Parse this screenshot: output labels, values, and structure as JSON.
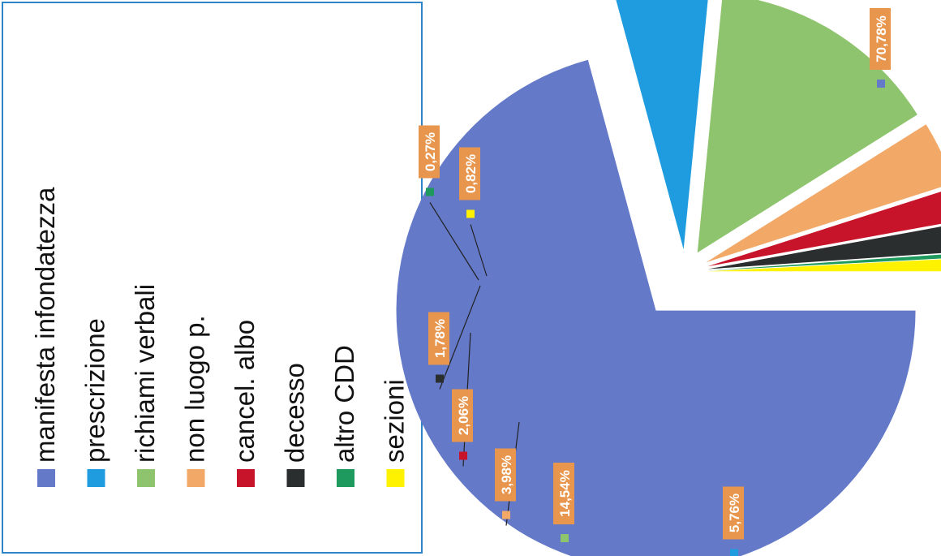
{
  "chart_data": {
    "type": "pie",
    "title": "",
    "legend_position": "left",
    "orientation": "rotated-90-ccw",
    "slices": [
      {
        "label": "manifesta infondatezza",
        "value": 70.78,
        "display": "70,78%",
        "color": "#6479c8"
      },
      {
        "label": "prescrizione",
        "value": 5.76,
        "display": "5,76%",
        "color": "#1f9be0"
      },
      {
        "label": "richiami verbali",
        "value": 14.54,
        "display": "14,54%",
        "color": "#8fc46e"
      },
      {
        "label": "non luogo p.",
        "value": 3.98,
        "display": "3,98%",
        "color": "#f2a866"
      },
      {
        "label": "cancel. albo",
        "value": 2.06,
        "display": "2,06%",
        "color": "#c8142a"
      },
      {
        "label": "decesso",
        "value": 1.78,
        "display": "1,78%",
        "color": "#2b2e2e"
      },
      {
        "label": "altro CDD",
        "value": 0.27,
        "display": "0,27%",
        "color": "#1e9a5e"
      },
      {
        "label": "sezioni",
        "value": 0.82,
        "display": "0,82%",
        "color": "#fff200"
      }
    ]
  }
}
